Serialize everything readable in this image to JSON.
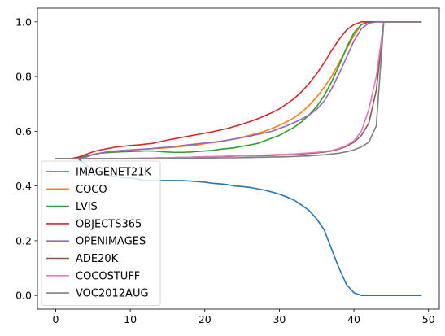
{
  "chart_data": {
    "type": "line",
    "title": "",
    "xlabel": "",
    "ylabel": "",
    "xlim": [
      -2.45,
      51.45
    ],
    "ylim": [
      -0.05,
      1.05
    ],
    "xticks": [
      0,
      10,
      20,
      30,
      40,
      50
    ],
    "yticks": [
      0.0,
      0.2,
      0.4,
      0.6,
      0.8,
      1.0
    ],
    "xtick_labels": [
      "0",
      "10",
      "20",
      "30",
      "40",
      "50"
    ],
    "ytick_labels": [
      "0.0",
      "0.2",
      "0.4",
      "0.6",
      "0.8",
      "1.0"
    ],
    "grid": false,
    "legend_position": "lower-left",
    "x": [
      0,
      1,
      2,
      3,
      4,
      5,
      6,
      7,
      8,
      9,
      10,
      11,
      12,
      13,
      14,
      15,
      16,
      17,
      18,
      19,
      20,
      21,
      22,
      23,
      24,
      25,
      26,
      27,
      28,
      29,
      30,
      31,
      32,
      33,
      34,
      35,
      36,
      37,
      38,
      39,
      40,
      41,
      42,
      43,
      44,
      45,
      46,
      47,
      48,
      49
    ],
    "series": [
      {
        "name": "IMAGENET21K",
        "color": "#1f77b4",
        "values": [
          0.5,
          0.5,
          0.5,
          0.5,
          0.48,
          0.46,
          0.45,
          0.44,
          0.435,
          0.43,
          0.43,
          0.425,
          0.42,
          0.42,
          0.42,
          0.42,
          0.42,
          0.42,
          0.418,
          0.416,
          0.414,
          0.41,
          0.408,
          0.405,
          0.4,
          0.398,
          0.395,
          0.39,
          0.385,
          0.378,
          0.37,
          0.36,
          0.348,
          0.33,
          0.31,
          0.28,
          0.24,
          0.17,
          0.1,
          0.04,
          0.01,
          0.0,
          0.0,
          0.0,
          0.0,
          0.0,
          0.0,
          0.0,
          0.0,
          0.0
        ]
      },
      {
        "name": "COCO",
        "color": "#ff7f0e",
        "values": [
          0.5,
          0.5,
          0.5,
          0.505,
          0.51,
          0.515,
          0.52,
          0.525,
          0.528,
          0.53,
          0.532,
          0.534,
          0.535,
          0.537,
          0.538,
          0.54,
          0.542,
          0.545,
          0.548,
          0.55,
          0.555,
          0.558,
          0.562,
          0.567,
          0.572,
          0.578,
          0.585,
          0.592,
          0.6,
          0.61,
          0.622,
          0.635,
          0.65,
          0.67,
          0.695,
          0.725,
          0.76,
          0.8,
          0.85,
          0.9,
          0.95,
          0.99,
          1.0,
          1.0,
          1.0,
          1.0,
          1.0,
          1.0,
          1.0,
          1.0
        ]
      },
      {
        "name": "LVIS",
        "color": "#2ca02c",
        "values": [
          0.5,
          0.5,
          0.5,
          0.502,
          0.508,
          0.515,
          0.52,
          0.522,
          0.524,
          0.525,
          0.526,
          0.527,
          0.528,
          0.528,
          0.526,
          0.524,
          0.523,
          0.523,
          0.524,
          0.526,
          0.528,
          0.53,
          0.534,
          0.537,
          0.54,
          0.545,
          0.55,
          0.555,
          0.565,
          0.575,
          0.585,
          0.6,
          0.615,
          0.635,
          0.66,
          0.69,
          0.73,
          0.78,
          0.84,
          0.905,
          0.96,
          0.99,
          1.0,
          1.0,
          1.0,
          1.0,
          1.0,
          1.0,
          1.0,
          1.0
        ]
      },
      {
        "name": "OBJECTS365",
        "color": "#d62728",
        "values": [
          0.5,
          0.5,
          0.5,
          0.505,
          0.515,
          0.525,
          0.532,
          0.537,
          0.542,
          0.545,
          0.548,
          0.55,
          0.553,
          0.556,
          0.562,
          0.568,
          0.573,
          0.578,
          0.583,
          0.588,
          0.593,
          0.598,
          0.604,
          0.61,
          0.618,
          0.626,
          0.635,
          0.645,
          0.656,
          0.668,
          0.682,
          0.7,
          0.72,
          0.745,
          0.775,
          0.81,
          0.85,
          0.895,
          0.935,
          0.97,
          0.99,
          1.0,
          1.0,
          1.0,
          1.0,
          1.0,
          1.0,
          1.0,
          1.0,
          1.0
        ]
      },
      {
        "name": "OPENIMAGES",
        "color": "#9467bd",
        "values": [
          0.5,
          0.5,
          0.5,
          0.5,
          0.505,
          0.515,
          0.52,
          0.525,
          0.528,
          0.53,
          0.532,
          0.533,
          0.535,
          0.537,
          0.54,
          0.542,
          0.545,
          0.548,
          0.551,
          0.554,
          0.557,
          0.56,
          0.563,
          0.567,
          0.572,
          0.577,
          0.582,
          0.588,
          0.594,
          0.6,
          0.61,
          0.62,
          0.632,
          0.645,
          0.66,
          0.68,
          0.71,
          0.755,
          0.81,
          0.87,
          0.93,
          0.975,
          0.995,
          1.0,
          1.0,
          1.0,
          1.0,
          1.0,
          1.0,
          1.0
        ]
      },
      {
        "name": "ADE20K",
        "color": "#8c564b",
        "values": [
          0.5,
          0.5,
          0.5,
          0.5,
          0.5,
          0.5,
          0.5,
          0.5,
          0.5,
          0.5,
          0.501,
          0.501,
          0.502,
          0.502,
          0.503,
          0.503,
          0.504,
          0.505,
          0.505,
          0.506,
          0.507,
          0.507,
          0.508,
          0.508,
          0.509,
          0.51,
          0.51,
          0.511,
          0.511,
          0.512,
          0.513,
          0.514,
          0.515,
          0.517,
          0.519,
          0.521,
          0.524,
          0.528,
          0.535,
          0.545,
          0.56,
          0.585,
          0.63,
          0.75,
          1.0,
          1.0,
          1.0,
          1.0,
          1.0,
          1.0
        ]
      },
      {
        "name": "COCOSTUFF",
        "color": "#e377c2",
        "values": [
          0.5,
          0.5,
          0.5,
          0.5,
          0.5,
          0.5,
          0.5,
          0.5,
          0.5,
          0.5,
          0.501,
          0.501,
          0.502,
          0.502,
          0.503,
          0.503,
          0.504,
          0.505,
          0.505,
          0.506,
          0.507,
          0.507,
          0.508,
          0.509,
          0.51,
          0.51,
          0.511,
          0.512,
          0.513,
          0.514,
          0.515,
          0.516,
          0.517,
          0.519,
          0.521,
          0.523,
          0.526,
          0.53,
          0.537,
          0.548,
          0.565,
          0.6,
          0.68,
          0.8,
          1.0,
          1.0,
          1.0,
          1.0,
          1.0,
          1.0
        ]
      },
      {
        "name": "VOC2012AUG",
        "color": "#7f7f7f",
        "values": [
          0.5,
          0.5,
          0.5,
          0.5,
          0.5,
          0.5,
          0.5,
          0.5,
          0.5,
          0.5,
          0.5,
          0.5,
          0.5,
          0.5,
          0.5,
          0.5,
          0.501,
          0.501,
          0.501,
          0.502,
          0.502,
          0.502,
          0.503,
          0.503,
          0.503,
          0.504,
          0.504,
          0.505,
          0.505,
          0.506,
          0.506,
          0.507,
          0.508,
          0.509,
          0.51,
          0.512,
          0.514,
          0.517,
          0.52,
          0.525,
          0.532,
          0.543,
          0.56,
          0.62,
          1.0,
          1.0,
          1.0,
          1.0,
          1.0,
          1.0
        ]
      }
    ]
  }
}
